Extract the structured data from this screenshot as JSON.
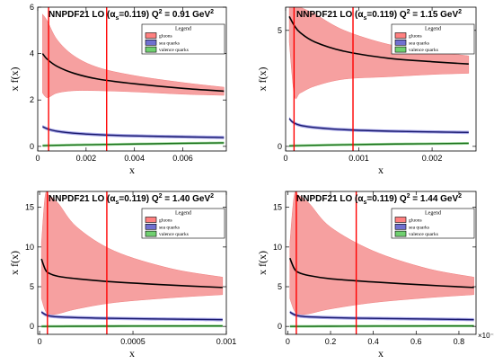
{
  "legend": {
    "title": "Legend",
    "items": [
      "gluons",
      "sea quarks",
      "valence quarks"
    ],
    "colors": {
      "gluons": "#ff8080",
      "sea": "#7070d0",
      "valence": "#70d070"
    }
  },
  "colors": {
    "band_gluon": "#f6a0a0",
    "central_gluon": "#000000",
    "sea_line": "#1a1a6e",
    "valence_line": "#1a6e1a",
    "vertical_line": "#ff0000"
  },
  "chart_data": [
    {
      "type": "line",
      "title": {
        "main": "NNPDF21 LO (α",
        "sub": "s",
        "mid": "=0.119)  Q",
        "sup": "2",
        "end": " = 0.91 GeV",
        "sup2": "2"
      },
      "xlabel": "x",
      "ylabel": "x f(x)",
      "xlim": [
        0,
        0.0078
      ],
      "ylim": [
        -0.2,
        6
      ],
      "xticks": [
        0,
        0.002,
        0.004,
        0.006
      ],
      "xtick_labels": [
        "0",
        "0.002",
        "0.004",
        "0.006"
      ],
      "yticks": [
        0,
        2,
        4,
        6
      ],
      "ytick_labels": [
        "0",
        "2",
        "4",
        "6"
      ],
      "x_exponent": "",
      "vlines": [
        0.00045,
        0.00285
      ],
      "series": [
        {
          "x": [
            0.0002,
            0.0004,
            0.0008,
            0.0015,
            0.0025,
            0.004,
            0.006,
            0.0077
          ],
          "central": [
            4.0,
            3.75,
            3.45,
            3.15,
            2.9,
            2.7,
            2.5,
            2.38
          ],
          "upper": [
            5.7,
            5.4,
            4.6,
            3.9,
            3.4,
            3.05,
            2.75,
            2.55
          ],
          "lower": [
            2.3,
            2.1,
            2.3,
            2.4,
            2.4,
            2.35,
            2.25,
            2.2
          ]
        },
        {
          "x": [
            0.0002,
            0.0005,
            0.001,
            0.002,
            0.004,
            0.0077
          ],
          "central": [
            0.85,
            0.72,
            0.62,
            0.53,
            0.45,
            0.38
          ]
        },
        {
          "x": [
            0.0002,
            0.001,
            0.002,
            0.004,
            0.006,
            0.0077
          ],
          "central": [
            0.03,
            0.05,
            0.07,
            0.1,
            0.13,
            0.15
          ]
        }
      ]
    },
    {
      "type": "line",
      "title": {
        "main": "NNPDF21 LO (α",
        "sub": "s",
        "mid": "=0.119)  Q",
        "sup": "2",
        "end": " = 1.15 GeV",
        "sup2": "2"
      },
      "xlabel": "x",
      "ylabel": "x f(x)",
      "xlim": [
        0,
        0.0026
      ],
      "ylim": [
        -0.2,
        6
      ],
      "xticks": [
        0,
        0.001,
        0.002
      ],
      "xtick_labels": [
        "0",
        "0.001",
        "0.002"
      ],
      "yticks": [
        0,
        5
      ],
      "ytick_labels": [
        "0",
        "5"
      ],
      "x_exponent": "",
      "vlines": [
        0.000115,
        0.00092
      ],
      "series": [
        {
          "x": [
            5e-05,
            0.00012,
            0.0002,
            0.0004,
            0.0008,
            0.0014,
            0.002,
            0.0025
          ],
          "central": [
            5.6,
            5.2,
            4.9,
            4.5,
            4.1,
            3.8,
            3.65,
            3.55
          ],
          "upper": [
            6.1,
            6.1,
            6.0,
            5.7,
            5.0,
            4.4,
            4.1,
            3.9
          ],
          "lower": [
            4.5,
            2.2,
            2.3,
            2.6,
            2.9,
            3.0,
            3.1,
            3.15
          ]
        },
        {
          "x": [
            5e-05,
            0.00012,
            0.0003,
            0.0008,
            0.0015,
            0.0025
          ],
          "central": [
            1.2,
            1.0,
            0.85,
            0.72,
            0.65,
            0.6
          ]
        },
        {
          "x": [
            5e-05,
            0.0003,
            0.0008,
            0.0015,
            0.0025
          ],
          "central": [
            0.02,
            0.04,
            0.07,
            0.1,
            0.13
          ]
        }
      ]
    },
    {
      "type": "line",
      "title": {
        "main": "NNPDF21 LO (α",
        "sub": "s",
        "mid": "=0.119)  Q",
        "sup": "2",
        "end": " = 1.40 GeV",
        "sup2": "2"
      },
      "xlabel": "x",
      "ylabel": "x f(x)",
      "xlim": [
        -1e-05,
        0.001
      ],
      "ylim": [
        -1,
        17
      ],
      "xticks": [
        0,
        0.0005,
        0.001
      ],
      "xtick_labels": [
        "0",
        "0.0005",
        "0.001"
      ],
      "yticks": [
        0,
        5,
        10,
        15
      ],
      "ytick_labels": [
        "0",
        "5",
        "10",
        "15"
      ],
      "x_exponent": "",
      "vlines": [
        4.2e-05,
        0.00036
      ],
      "series": [
        {
          "x": [
            1e-05,
            3e-05,
            5e-05,
            0.0001,
            0.0002,
            0.0004,
            0.0007,
            0.00098
          ],
          "central": [
            8.5,
            7.2,
            6.7,
            6.3,
            6.0,
            5.6,
            5.2,
            4.9
          ],
          "upper": [
            10.5,
            16.5,
            16.5,
            15.5,
            12.5,
            9.5,
            7.3,
            6.2
          ],
          "lower": [
            3.5,
            2.0,
            1.5,
            1.6,
            2.2,
            3.0,
            3.6,
            4.0
          ]
        },
        {
          "x": [
            1e-05,
            4e-05,
            0.0001,
            0.0003,
            0.0006,
            0.00098
          ],
          "central": [
            1.8,
            1.4,
            1.2,
            1.05,
            0.95,
            0.85
          ]
        },
        {
          "x": [
            1e-05,
            0.0002,
            0.0005,
            0.00098
          ],
          "central": [
            0.0,
            0.02,
            0.04,
            0.06
          ]
        }
      ]
    },
    {
      "type": "line",
      "title": {
        "main": "NNPDF21 LO (α",
        "sub": "s",
        "mid": "=0.119)  Q",
        "sup": "2",
        "end": " = 1.44 GeV",
        "sup2": "2"
      },
      "xlabel": "x",
      "ylabel": "x f(x)",
      "xlim": [
        -0.01,
        0.88
      ],
      "ylim": [
        -1,
        17
      ],
      "xticks": [
        0,
        0.2,
        0.4,
        0.6,
        0.8
      ],
      "xtick_labels": [
        "0",
        "0.2",
        "0.4",
        "0.6",
        "0.8"
      ],
      "yticks": [
        0,
        5,
        10,
        15
      ],
      "ytick_labels": [
        "0",
        "5",
        "10",
        "15"
      ],
      "x_exponent": "×10⁻³",
      "vlines": [
        0.04,
        0.32
      ],
      "series": [
        {
          "x": [
            0.01,
            0.03,
            0.05,
            0.1,
            0.2,
            0.4,
            0.65,
            0.87
          ],
          "central": [
            8.6,
            7.3,
            6.8,
            6.4,
            6.0,
            5.6,
            5.2,
            4.9
          ],
          "upper": [
            10.5,
            16.5,
            16.5,
            15.5,
            12.5,
            9.5,
            7.3,
            6.2
          ],
          "lower": [
            3.5,
            2.0,
            1.5,
            1.6,
            2.2,
            3.0,
            3.6,
            4.0
          ]
        },
        {
          "x": [
            0.01,
            0.04,
            0.1,
            0.3,
            0.6,
            0.87
          ],
          "central": [
            1.8,
            1.4,
            1.2,
            1.05,
            0.95,
            0.85
          ]
        },
        {
          "x": [
            0.01,
            0.2,
            0.5,
            0.87
          ],
          "central": [
            0.0,
            0.02,
            0.04,
            0.06
          ]
        }
      ]
    }
  ]
}
